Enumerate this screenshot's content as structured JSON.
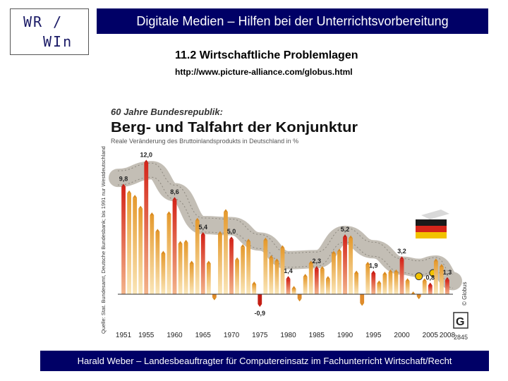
{
  "logo": {
    "line1": "WR /",
    "line2": "WIn"
  },
  "header": {
    "title": "Digitale Medien – Hilfen bei der Unterrichtsvorbereitung"
  },
  "slide": {
    "subtitle": "11.2 Wirtschaftliche Problemlagen",
    "url": "http://www.picture-alliance.com/globus.html"
  },
  "footer": {
    "text": "Harald Weber – Landesbeauftragter für Computereinsatz im Fachunterricht Wirtschaft/Recht"
  },
  "colors": {
    "brand": "#000066",
    "bar_top": "#e8a33c",
    "bar_bottom": "#f8e3b0",
    "bar_red": "#d4251a",
    "band": "#b9b3a8"
  },
  "chart_data": {
    "type": "bar",
    "kicker": "60 Jahre Bundesrepublik:",
    "title": "Berg- und Talfahrt der Konjunktur",
    "subtitle": "Reale Veränderung des Bruttoinlandsprodukts in Deutschland in %",
    "source": "Quelle: Stat. Bundesamt, Deutsche Bundesbank; bis 1991 nur Westdeutschland",
    "copyright": "© Globus",
    "graphic_number": "2845",
    "brand_letter": "G",
    "x_ticks": [
      "1951",
      "1955",
      "1960",
      "1965",
      "1970",
      "1975",
      "1980",
      "1985",
      "1990",
      "1995",
      "2000",
      "2005",
      "2008"
    ],
    "years": [
      1951,
      1952,
      1953,
      1954,
      1955,
      1956,
      1957,
      1958,
      1959,
      1960,
      1961,
      1962,
      1963,
      1964,
      1965,
      1966,
      1967,
      1968,
      1969,
      1970,
      1971,
      1972,
      1973,
      1974,
      1975,
      1976,
      1977,
      1978,
      1979,
      1980,
      1981,
      1982,
      1983,
      1984,
      1985,
      1986,
      1987,
      1988,
      1989,
      1990,
      1991,
      1992,
      1993,
      1994,
      1995,
      1996,
      1997,
      1998,
      1999,
      2000,
      2001,
      2002,
      2003,
      2004,
      2005,
      2006,
      2007,
      2008
    ],
    "values": [
      9.8,
      9.2,
      8.8,
      7.8,
      12.0,
      7.2,
      5.7,
      3.7,
      7.3,
      8.6,
      4.6,
      4.7,
      2.8,
      6.7,
      5.4,
      2.8,
      -0.3,
      5.5,
      7.5,
      5.0,
      3.1,
      4.3,
      4.8,
      0.9,
      -0.9,
      4.9,
      3.3,
      3.0,
      4.2,
      1.4,
      0.5,
      -0.4,
      1.6,
      2.8,
      2.3,
      2.3,
      1.4,
      3.7,
      3.9,
      5.2,
      5.1,
      1.9,
      -0.8,
      2.7,
      1.9,
      1.0,
      1.8,
      2.0,
      2.0,
      3.2,
      1.2,
      0.0,
      -0.2,
      1.2,
      0.8,
      3.0,
      2.5,
      1.3
    ],
    "labeled": [
      {
        "year": 1951,
        "value": "9,8"
      },
      {
        "year": 1955,
        "value": "12,0"
      },
      {
        "year": 1960,
        "value": "8,6"
      },
      {
        "year": 1965,
        "value": "5,4"
      },
      {
        "year": 1970,
        "value": "5,0"
      },
      {
        "year": 1975,
        "value": "-0,9"
      },
      {
        "year": 1980,
        "value": "1,4"
      },
      {
        "year": 1985,
        "value": "2,3"
      },
      {
        "year": 1990,
        "value": "5,2"
      },
      {
        "year": 1995,
        "value": "1,9"
      },
      {
        "year": 2000,
        "value": "3,2"
      },
      {
        "year": 2005,
        "value": "0,8"
      },
      {
        "year": 2008,
        "value": "1,3"
      }
    ],
    "red_years": [
      1951,
      1955,
      1960,
      1965,
      1970,
      1975,
      1980,
      1985,
      1990,
      1995,
      2000,
      2005,
      2008
    ],
    "xlim": [
      1950,
      2009
    ],
    "ylim": [
      -1.8,
      12.6
    ],
    "grid": false,
    "trend_band": [
      {
        "year": 1950,
        "value": 10.6
      },
      {
        "year": 1956,
        "value": 11.3
      },
      {
        "year": 1960,
        "value": 9.3
      },
      {
        "year": 1965,
        "value": 6.3
      },
      {
        "year": 1970,
        "value": 6.2
      },
      {
        "year": 1975,
        "value": 4.8
      },
      {
        "year": 1980,
        "value": 3.1
      },
      {
        "year": 1985,
        "value": 3.2
      },
      {
        "year": 1990,
        "value": 5.4
      },
      {
        "year": 1995,
        "value": 4.1
      },
      {
        "year": 2000,
        "value": 2.6
      },
      {
        "year": 2003,
        "value": 2.4
      },
      {
        "year": 2006,
        "value": 2.7
      },
      {
        "year": 2009,
        "value": 1.2
      }
    ]
  }
}
